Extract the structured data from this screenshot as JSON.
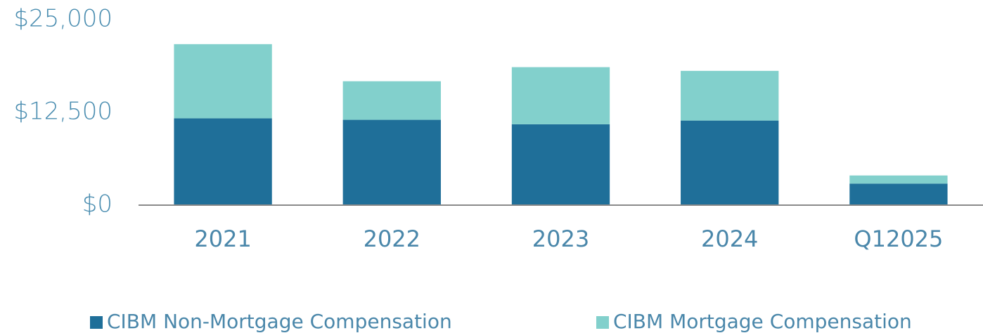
{
  "chart_data": {
    "type": "stacked_bar",
    "categories": [
      "2021",
      "2022",
      "2023",
      "2024",
      "Q12025"
    ],
    "series": [
      {
        "name": "CIBM Non-Mortgage Compensation",
        "color": "#1f6f99",
        "values": [
          11700,
          11500,
          10900,
          11400,
          2900
        ]
      },
      {
        "name": "CIBM Mortgage Compensation",
        "color": "#82d0cc",
        "values": [
          10000,
          5200,
          7700,
          6700,
          1100
        ]
      }
    ],
    "ylim": [
      0,
      25000
    ],
    "yticks": [
      {
        "value": 0,
        "label": "$0"
      },
      {
        "value": 12500,
        "label": "$12,500"
      },
      {
        "value": 25000,
        "label": "$25,000"
      }
    ],
    "grid": false
  }
}
